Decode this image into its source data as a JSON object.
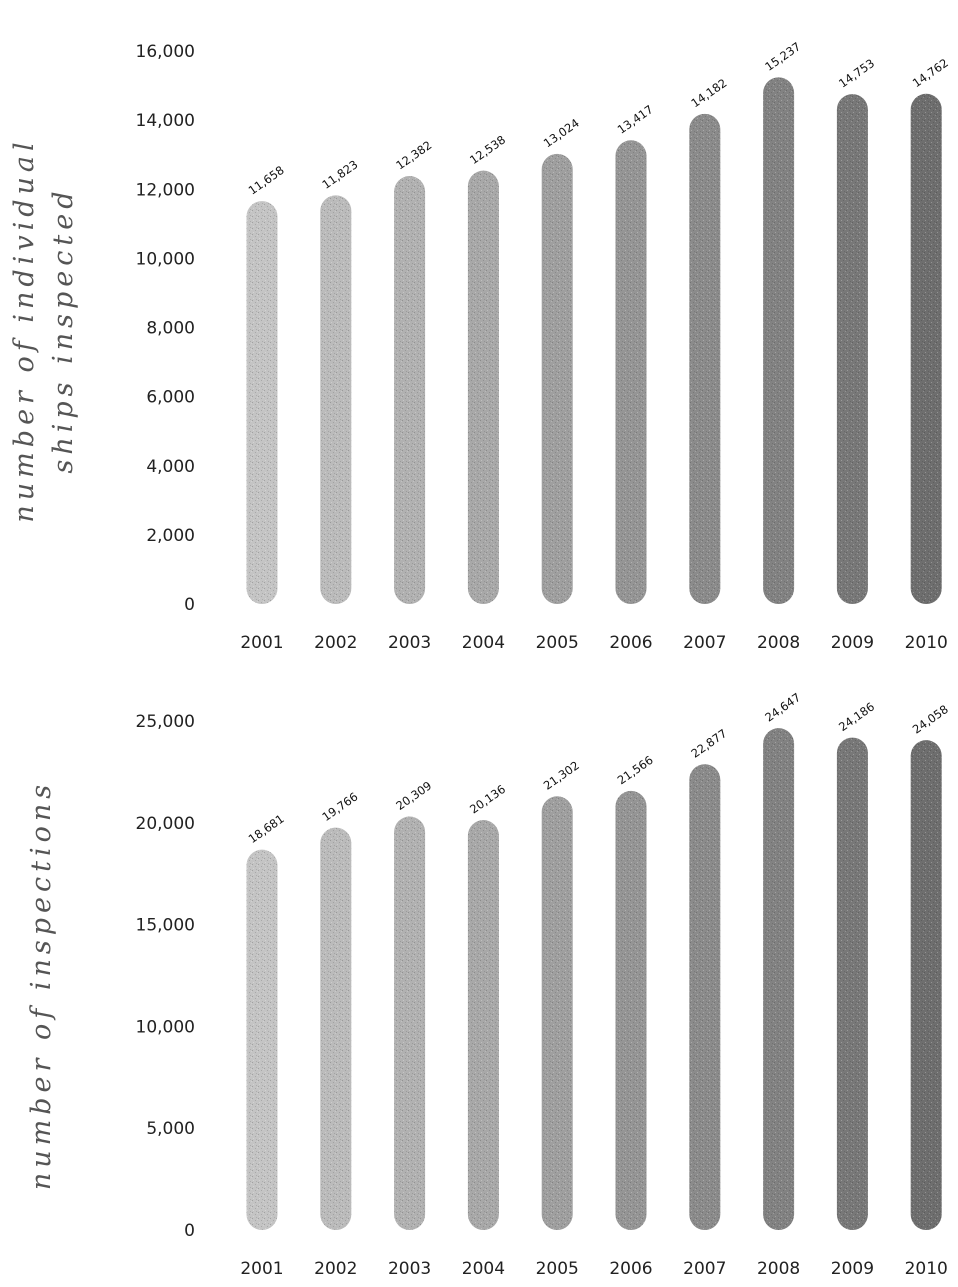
{
  "chart_data": [
    {
      "type": "bar",
      "title": "",
      "xlabel": "",
      "ylabel": "number of individual ships inspected",
      "ylabel_lines": [
        "number of individual",
        "ships inspected"
      ],
      "categories": [
        "2001",
        "2002",
        "2003",
        "2004",
        "2005",
        "2006",
        "2007",
        "2008",
        "2009",
        "2010"
      ],
      "values": [
        11658,
        11823,
        12382,
        12538,
        13024,
        13417,
        14182,
        15237,
        14753,
        14762
      ],
      "data_labels": [
        "11,658",
        "11,823",
        "12,382",
        "12,538",
        "13,024",
        "13,417",
        "14,182",
        "15,237",
        "14,753",
        "14,762"
      ],
      "yticks": [
        "0",
        "2,000",
        "4,000",
        "6,000",
        "8,000",
        "10,000",
        "12,000",
        "14,000",
        "16,000"
      ],
      "ylim": [
        0,
        16000
      ],
      "grid": false,
      "legend": "none"
    },
    {
      "type": "bar",
      "title": "",
      "xlabel": "",
      "ylabel": "number of inspections",
      "ylabel_lines": [
        "number of inspections"
      ],
      "categories": [
        "2001",
        "2002",
        "2003",
        "2004",
        "2005",
        "2006",
        "2007",
        "2008",
        "2009",
        "2010"
      ],
      "values": [
        18681,
        19766,
        20309,
        20136,
        21302,
        21566,
        22877,
        24647,
        24186,
        24058
      ],
      "data_labels": [
        "18,681",
        "19,766",
        "20,309",
        "20,136",
        "21,302",
        "21,566",
        "22,877",
        "24,647",
        "24,186",
        "24,058"
      ],
      "yticks": [
        "0",
        "5,000",
        "10,000",
        "15,000",
        "20,000",
        "25,000"
      ],
      "ylim": [
        0,
        25000
      ],
      "grid": false,
      "legend": "none"
    }
  ],
  "colors": {
    "bar_light": "#c4c4c4",
    "bar_mid": "#9a9a9a",
    "bar_dark": "#6e6e6e",
    "text": "#222222",
    "axis_title": "#555555"
  }
}
